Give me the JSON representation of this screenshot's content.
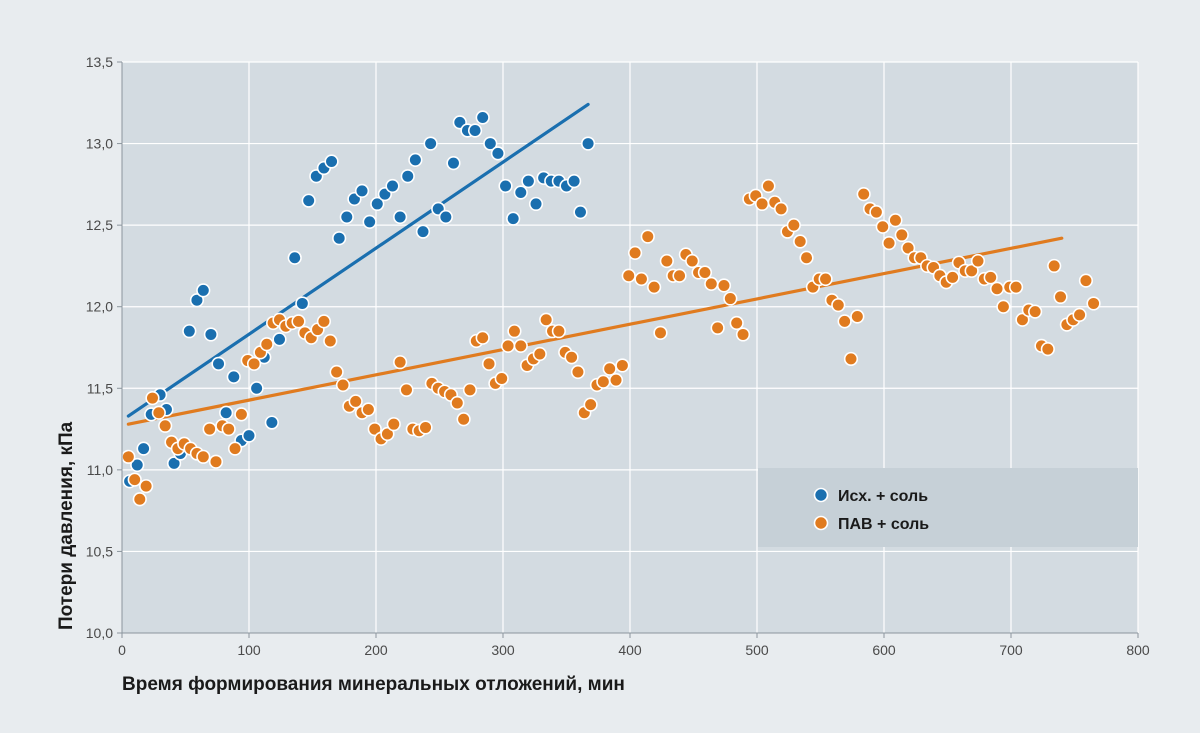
{
  "chart_data": {
    "type": "scatter",
    "title": "",
    "xlabel": "Время формирования минеральных отложений, мин",
    "ylabel": "Потери давления, кПа",
    "xlim": [
      0,
      800
    ],
    "ylim": [
      10.0,
      13.5
    ],
    "x_ticks": [
      0,
      100,
      200,
      300,
      400,
      500,
      600,
      700,
      800
    ],
    "y_ticks": [
      10.0,
      10.5,
      11.0,
      11.5,
      12.0,
      12.5,
      13.0,
      13.5
    ],
    "x_tick_labels": [
      "0",
      "100",
      "200",
      "300",
      "400",
      "500",
      "600",
      "700",
      "800"
    ],
    "y_tick_labels": [
      "10,0",
      "10,5",
      "11,0",
      "11,5",
      "12,0",
      "12,5",
      "13,0",
      "13,5"
    ],
    "grid": true,
    "legend_position": "bottom-right",
    "series": [
      {
        "name": "Исх. + соль",
        "color": "#1a6faf",
        "trend_line": [
          [
            5,
            11.33
          ],
          [
            367,
            13.24
          ]
        ],
        "points": [
          [
            6,
            10.93
          ],
          [
            12,
            11.03
          ],
          [
            17,
            11.13
          ],
          [
            23,
            11.34
          ],
          [
            30,
            11.46
          ],
          [
            35,
            11.37
          ],
          [
            41,
            11.04
          ],
          [
            46,
            11.1
          ],
          [
            53,
            11.85
          ],
          [
            59,
            12.04
          ],
          [
            64,
            12.1
          ],
          [
            70,
            11.83
          ],
          [
            76,
            11.65
          ],
          [
            82,
            11.35
          ],
          [
            88,
            11.57
          ],
          [
            94,
            11.18
          ],
          [
            100,
            11.21
          ],
          [
            106,
            11.5
          ],
          [
            112,
            11.69
          ],
          [
            118,
            11.29
          ],
          [
            124,
            11.8
          ],
          [
            136,
            12.3
          ],
          [
            142,
            12.02
          ],
          [
            147,
            12.65
          ],
          [
            153,
            12.8
          ],
          [
            159,
            12.85
          ],
          [
            165,
            12.89
          ],
          [
            171,
            12.42
          ],
          [
            177,
            12.55
          ],
          [
            183,
            12.66
          ],
          [
            189,
            12.71
          ],
          [
            195,
            12.52
          ],
          [
            201,
            12.63
          ],
          [
            207,
            12.69
          ],
          [
            213,
            12.74
          ],
          [
            219,
            12.55
          ],
          [
            225,
            12.8
          ],
          [
            231,
            12.9
          ],
          [
            237,
            12.46
          ],
          [
            243,
            13.0
          ],
          [
            249,
            12.6
          ],
          [
            255,
            12.55
          ],
          [
            261,
            12.88
          ],
          [
            266,
            13.13
          ],
          [
            272,
            13.08
          ],
          [
            278,
            13.08
          ],
          [
            284,
            13.16
          ],
          [
            290,
            13.0
          ],
          [
            296,
            12.94
          ],
          [
            302,
            12.74
          ],
          [
            308,
            12.54
          ],
          [
            314,
            12.7
          ],
          [
            320,
            12.77
          ],
          [
            326,
            12.63
          ],
          [
            332,
            12.79
          ],
          [
            338,
            12.77
          ],
          [
            344,
            12.77
          ],
          [
            350,
            12.74
          ],
          [
            356,
            12.77
          ],
          [
            361,
            12.58
          ],
          [
            367,
            13.0
          ]
        ]
      },
      {
        "name": "ПАВ + соль",
        "color": "#e07b1f",
        "trend_line": [
          [
            5,
            11.28
          ],
          [
            740,
            12.42
          ]
        ],
        "points": [
          [
            5,
            11.08
          ],
          [
            10,
            10.94
          ],
          [
            14,
            10.82
          ],
          [
            19,
            10.9
          ],
          [
            24,
            11.44
          ],
          [
            29,
            11.35
          ],
          [
            34,
            11.27
          ],
          [
            39,
            11.17
          ],
          [
            44,
            11.13
          ],
          [
            49,
            11.16
          ],
          [
            54,
            11.13
          ],
          [
            59,
            11.1
          ],
          [
            64,
            11.08
          ],
          [
            69,
            11.25
          ],
          [
            74,
            11.05
          ],
          [
            79,
            11.27
          ],
          [
            84,
            11.25
          ],
          [
            89,
            11.13
          ],
          [
            94,
            11.34
          ],
          [
            99,
            11.67
          ],
          [
            104,
            11.65
          ],
          [
            109,
            11.72
          ],
          [
            114,
            11.77
          ],
          [
            119,
            11.9
          ],
          [
            124,
            11.92
          ],
          [
            129,
            11.88
          ],
          [
            134,
            11.9
          ],
          [
            139,
            11.91
          ],
          [
            144,
            11.84
          ],
          [
            149,
            11.81
          ],
          [
            154,
            11.86
          ],
          [
            159,
            11.91
          ],
          [
            164,
            11.79
          ],
          [
            169,
            11.6
          ],
          [
            174,
            11.52
          ],
          [
            179,
            11.39
          ],
          [
            184,
            11.42
          ],
          [
            189,
            11.35
          ],
          [
            194,
            11.37
          ],
          [
            199,
            11.25
          ],
          [
            204,
            11.19
          ],
          [
            209,
            11.22
          ],
          [
            214,
            11.28
          ],
          [
            219,
            11.66
          ],
          [
            224,
            11.49
          ],
          [
            229,
            11.25
          ],
          [
            234,
            11.24
          ],
          [
            239,
            11.26
          ],
          [
            244,
            11.53
          ],
          [
            249,
            11.5
          ],
          [
            254,
            11.48
          ],
          [
            259,
            11.46
          ],
          [
            264,
            11.41
          ],
          [
            269,
            11.31
          ],
          [
            274,
            11.49
          ],
          [
            279,
            11.79
          ],
          [
            284,
            11.81
          ],
          [
            289,
            11.65
          ],
          [
            294,
            11.53
          ],
          [
            299,
            11.56
          ],
          [
            304,
            11.76
          ],
          [
            309,
            11.85
          ],
          [
            314,
            11.76
          ],
          [
            319,
            11.64
          ],
          [
            324,
            11.68
          ],
          [
            329,
            11.71
          ],
          [
            334,
            11.92
          ],
          [
            339,
            11.85
          ],
          [
            344,
            11.85
          ],
          [
            349,
            11.72
          ],
          [
            354,
            11.69
          ],
          [
            359,
            11.6
          ],
          [
            364,
            11.35
          ],
          [
            369,
            11.4
          ],
          [
            374,
            11.52
          ],
          [
            379,
            11.54
          ],
          [
            384,
            11.62
          ],
          [
            389,
            11.55
          ],
          [
            394,
            11.64
          ],
          [
            399,
            12.19
          ],
          [
            404,
            12.33
          ],
          [
            409,
            12.17
          ],
          [
            414,
            12.43
          ],
          [
            419,
            12.12
          ],
          [
            424,
            11.84
          ],
          [
            429,
            12.28
          ],
          [
            434,
            12.19
          ],
          [
            439,
            12.19
          ],
          [
            444,
            12.32
          ],
          [
            449,
            12.28
          ],
          [
            454,
            12.21
          ],
          [
            459,
            12.21
          ],
          [
            464,
            12.14
          ],
          [
            469,
            11.87
          ],
          [
            474,
            12.13
          ],
          [
            479,
            12.05
          ],
          [
            484,
            11.9
          ],
          [
            489,
            11.83
          ],
          [
            494,
            12.66
          ],
          [
            499,
            12.68
          ],
          [
            504,
            12.63
          ],
          [
            509,
            12.74
          ],
          [
            514,
            12.64
          ],
          [
            519,
            12.6
          ],
          [
            524,
            12.46
          ],
          [
            529,
            12.5
          ],
          [
            534,
            12.4
          ],
          [
            539,
            12.3
          ],
          [
            544,
            12.12
          ],
          [
            549,
            12.17
          ],
          [
            554,
            12.17
          ],
          [
            559,
            12.04
          ],
          [
            564,
            12.01
          ],
          [
            569,
            11.91
          ],
          [
            574,
            11.68
          ],
          [
            579,
            11.94
          ],
          [
            584,
            12.69
          ],
          [
            589,
            12.6
          ],
          [
            594,
            12.58
          ],
          [
            599,
            12.49
          ],
          [
            604,
            12.39
          ],
          [
            609,
            12.53
          ],
          [
            614,
            12.44
          ],
          [
            619,
            12.36
          ],
          [
            624,
            12.3
          ],
          [
            629,
            12.3
          ],
          [
            634,
            12.25
          ],
          [
            639,
            12.24
          ],
          [
            644,
            12.19
          ],
          [
            649,
            12.15
          ],
          [
            654,
            12.18
          ],
          [
            659,
            12.27
          ],
          [
            664,
            12.22
          ],
          [
            669,
            12.22
          ],
          [
            674,
            12.28
          ],
          [
            679,
            12.17
          ],
          [
            684,
            12.18
          ],
          [
            689,
            12.11
          ],
          [
            694,
            12.0
          ],
          [
            699,
            12.12
          ],
          [
            704,
            12.12
          ],
          [
            709,
            11.92
          ],
          [
            714,
            11.98
          ],
          [
            719,
            11.97
          ],
          [
            724,
            11.76
          ],
          [
            729,
            11.74
          ],
          [
            734,
            12.25
          ],
          [
            739,
            12.06
          ],
          [
            744,
            11.89
          ],
          [
            749,
            11.92
          ],
          [
            754,
            11.95
          ],
          [
            759,
            12.16
          ],
          [
            765,
            12.02
          ]
        ]
      }
    ]
  },
  "colors": {
    "page_bg": "#e8ecef",
    "plot_bg": "#d3dbe1",
    "legend_bg": "#c6d0d7",
    "grid": "#ffffff",
    "frame": "#8b959d"
  }
}
